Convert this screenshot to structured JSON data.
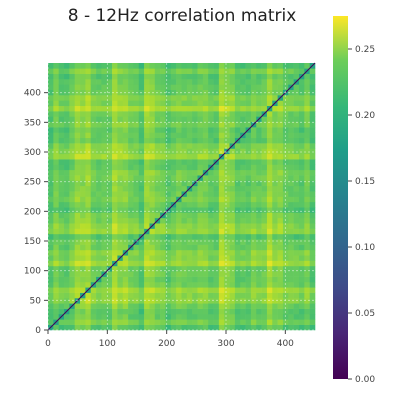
{
  "chart_data": {
    "type": "heatmap",
    "title": "8 - 12Hz correlation matrix",
    "xlabel": "",
    "ylabel": "",
    "n": 450,
    "xlim": [
      0,
      450
    ],
    "ylim": [
      0,
      450
    ],
    "x_ticks": [
      0,
      100,
      200,
      300,
      400
    ],
    "y_ticks": [
      0,
      50,
      100,
      150,
      200,
      250,
      300,
      350,
      400
    ],
    "grid": true,
    "colormap": "viridis",
    "colorbar": {
      "range": [
        0.0,
        0.275
      ],
      "ticks": [
        "0.00",
        "0.05",
        "0.10",
        "0.15",
        "0.20",
        "0.25"
      ],
      "tick_values": [
        0.0,
        0.05,
        0.1,
        0.15,
        0.2,
        0.25
      ]
    },
    "diagonal_value": 0.0,
    "typical_off_diagonal_range": [
      0.17,
      0.25
    ],
    "bright_bands": [
      60,
      120,
      170,
      300,
      380
    ],
    "colors": {
      "low": "#440154",
      "mid": "#21918c",
      "high": "#fde725"
    }
  }
}
